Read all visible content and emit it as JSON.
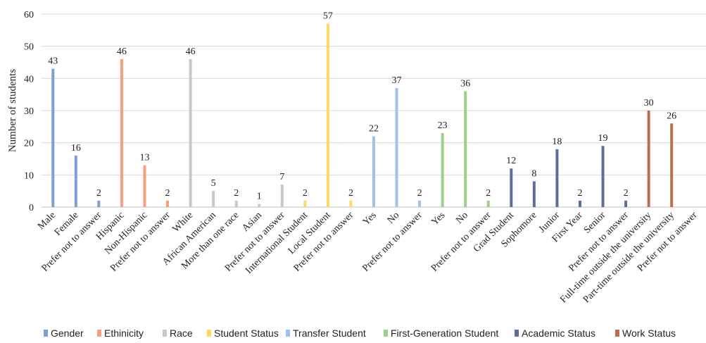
{
  "chart_data": {
    "type": "bar",
    "title": "",
    "xlabel": "",
    "ylabel": "Number of students",
    "ylim": [
      0,
      60
    ],
    "yticks": [
      0,
      10,
      20,
      30,
      40,
      50,
      60
    ],
    "grid": true,
    "legend_position": "bottom",
    "series": [
      {
        "name": "Gender",
        "color": "#7f9fd8",
        "points": [
          {
            "category": "Male",
            "value": 43
          },
          {
            "category": "Female",
            "value": 16
          },
          {
            "category": "Prefer not to answer",
            "value": 2
          }
        ]
      },
      {
        "name": "Ethinicity",
        "color": "#f4a27c",
        "points": [
          {
            "category": "Hispanic",
            "value": 46
          },
          {
            "category": "Non-Hispanic",
            "value": 13
          },
          {
            "category": "Prefer not to answer",
            "value": 2
          }
        ]
      },
      {
        "name": "Race",
        "color": "#c8c8c8",
        "points": [
          {
            "category": "White",
            "value": 46
          },
          {
            "category": "African American",
            "value": 5
          },
          {
            "category": "More than one race",
            "value": 2
          },
          {
            "category": "Asian",
            "value": 1
          },
          {
            "category": "Prefer not to answer",
            "value": 7
          }
        ]
      },
      {
        "name": "Student Status",
        "color": "#ffd95e",
        "points": [
          {
            "category": "International Student",
            "value": 2
          },
          {
            "category": "Local Student",
            "value": 57
          },
          {
            "category": "Prefer not to answer",
            "value": 2
          }
        ]
      },
      {
        "name": "Transfer Student",
        "color": "#9dc3ea",
        "points": [
          {
            "category": "Yes",
            "value": 22
          },
          {
            "category": "No",
            "value": 37
          },
          {
            "category": "Prefer not to answer",
            "value": 2
          }
        ]
      },
      {
        "name": "First-Generation Student",
        "color": "#9ccf8a",
        "points": [
          {
            "category": "Yes",
            "value": 23
          },
          {
            "category": "No",
            "value": 36
          },
          {
            "category": "Prefer not to answer",
            "value": 2
          }
        ]
      },
      {
        "name": "Academic  Status",
        "color": "#5b6f9a",
        "points": [
          {
            "category": "Grad Student",
            "value": 12
          },
          {
            "category": "Sophomore",
            "value": 8
          },
          {
            "category": "Junior",
            "value": 18
          },
          {
            "category": "First Year",
            "value": 2
          },
          {
            "category": "Senior",
            "value": 19
          },
          {
            "category": "Prefer not to answer",
            "value": 2
          }
        ]
      },
      {
        "name": "Work Status",
        "color": "#b8704f",
        "points": [
          {
            "category": "Full-time outside the university",
            "value": 30
          },
          {
            "category": "Part-time outside the university",
            "value": 26
          },
          {
            "category": "Prefer not to answer",
            "value": 0
          }
        ]
      }
    ]
  }
}
